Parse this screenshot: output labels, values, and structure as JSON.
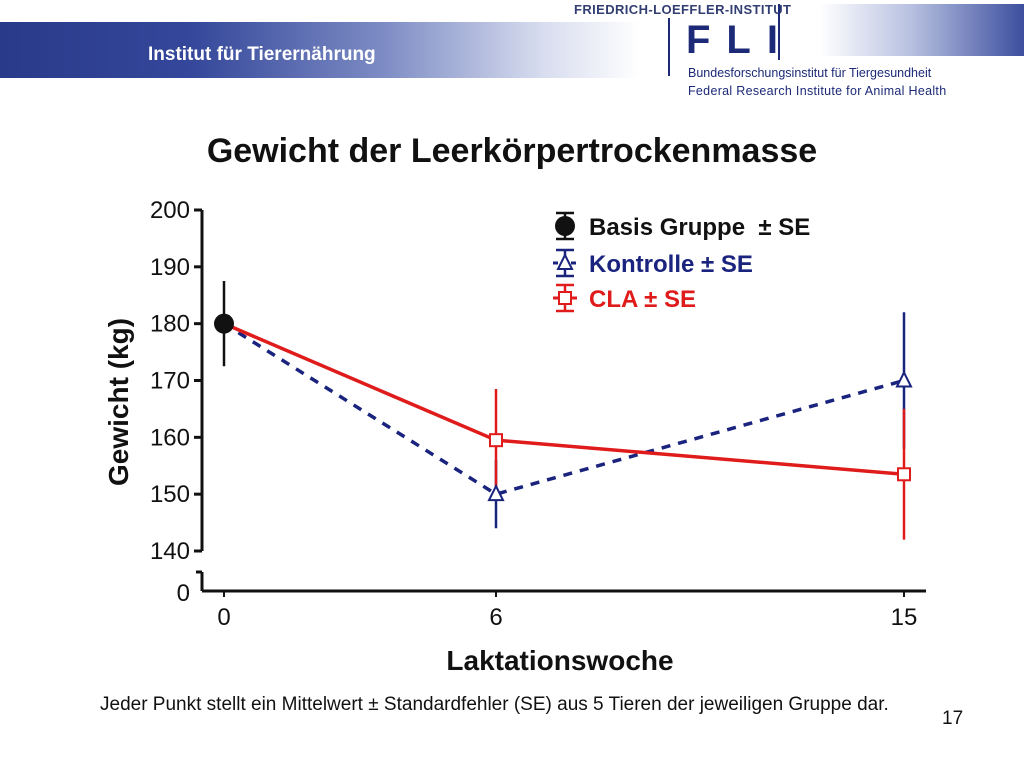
{
  "header": {
    "institute": "Institut für Tierernährung",
    "logo_top": "FRIEDRICH-LOEFFLER-INSTITUT",
    "logo_letters": "FLI",
    "logo_de": "Bundesforschungsinstitut für Tiergesundheit",
    "logo_en": "Federal Research Institute for Animal Health"
  },
  "colors": {
    "basis": "#111111",
    "kontrolle": "#1a237e",
    "cla": "#e01b1b",
    "header_blue": "#2a3a8a"
  },
  "chart_data": {
    "type": "line",
    "title": "Gewicht der Leerkörpertrockenmasse",
    "xlabel": "Laktationswoche",
    "ylabel": "Gewicht (kg)",
    "x": [
      0,
      6,
      15
    ],
    "x_ticks": [
      "0",
      "6",
      "15"
    ],
    "xlim": [
      -0.5,
      15.5
    ],
    "ylim": [
      140,
      200
    ],
    "y_ticks": [
      "140",
      "150",
      "160",
      "170",
      "180",
      "190",
      "200"
    ],
    "y_break_label": "0",
    "axis_break": true,
    "grid": false,
    "legend_position": "top-right",
    "series": [
      {
        "name": "Basis Gruppe  ± SE",
        "key": "basis",
        "x": [
          0
        ],
        "values": [
          180
        ],
        "se": [
          7.5
        ],
        "marker": "filled-circle",
        "line": "none"
      },
      {
        "name": "Kontrolle ± SE",
        "key": "kontrolle",
        "x": [
          0,
          6,
          15
        ],
        "values": [
          180,
          150,
          170
        ],
        "se": [
          0,
          6,
          12
        ],
        "marker": "open-triangle",
        "line": "dashed"
      },
      {
        "name": "CLA ± SE",
        "key": "cla",
        "x": [
          0,
          6,
          15
        ],
        "values": [
          180,
          159.5,
          153.5
        ],
        "se": [
          0,
          9,
          11.5
        ],
        "marker": "open-square",
        "line": "solid"
      }
    ]
  },
  "footnote": "Jeder Punkt stellt ein Mittelwert ± Standardfehler (SE) aus 5 Tieren der jeweiligen Gruppe dar.",
  "page_number": "17"
}
